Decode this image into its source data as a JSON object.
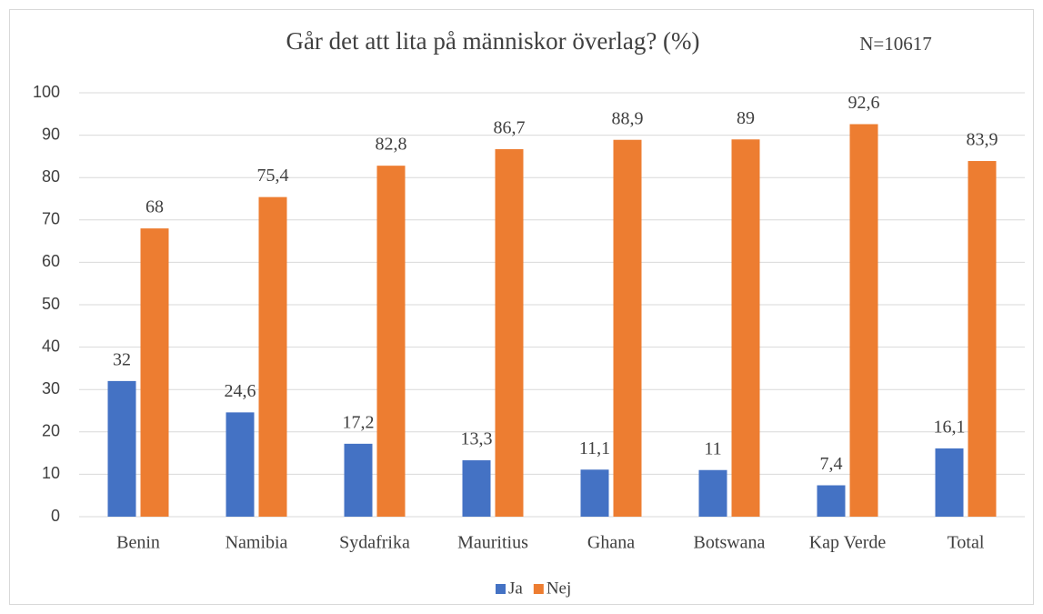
{
  "chart_data": {
    "type": "bar",
    "title": "Går det att lita på människor överlag? (%)",
    "annotation": "N=10617",
    "categories": [
      "Benin",
      "Namibia",
      "Sydafrika",
      "Mauritius",
      "Ghana",
      "Botswana",
      "Kap Verde",
      "Total"
    ],
    "series": [
      {
        "name": "Ja",
        "color": "#4472c4",
        "values": [
          32,
          24.6,
          17.2,
          13.3,
          11.1,
          11,
          7.4,
          16.1
        ],
        "value_labels": [
          "32",
          "24,6",
          "17,2",
          "13,3",
          "11,1",
          "11",
          "7,4",
          "16,1"
        ]
      },
      {
        "name": "Nej",
        "color": "#ed7d31",
        "values": [
          68,
          75.4,
          82.8,
          86.7,
          88.9,
          89,
          92.6,
          83.9
        ],
        "value_labels": [
          "68",
          "75,4",
          "82,8",
          "86,7",
          "88,9",
          "89",
          "92,6",
          "83,9"
        ]
      }
    ],
    "ylim": [
      0,
      100
    ],
    "yticks": [
      0,
      10,
      20,
      30,
      40,
      50,
      60,
      70,
      80,
      90,
      100
    ],
    "grid": true,
    "legend": "bottom"
  }
}
